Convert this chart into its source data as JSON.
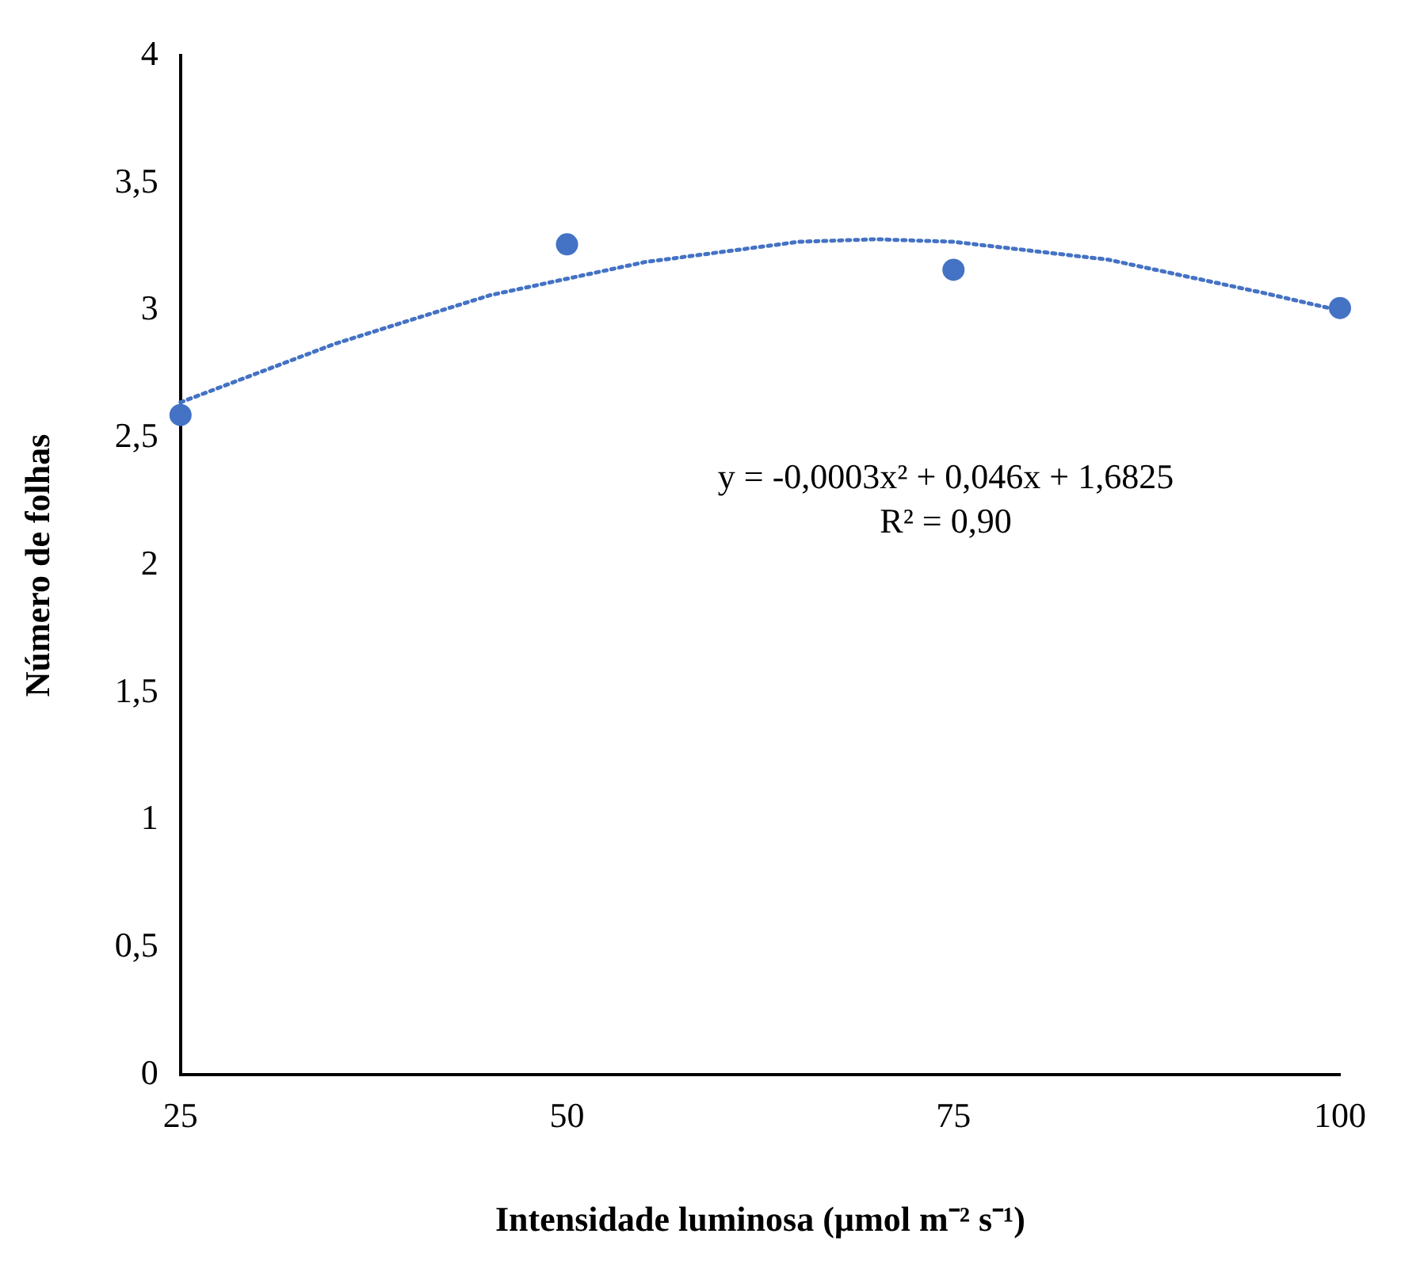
{
  "chart_data": {
    "type": "scatter",
    "xlabel": "Intensidade luminosa (µmol m⁻² s⁻¹)",
    "ylabel": "Número de folhas",
    "x": [
      25,
      50,
      75,
      100
    ],
    "xlim": [
      25,
      100
    ],
    "xticks": [
      25,
      50,
      75,
      100
    ],
    "ylim": [
      0,
      4
    ],
    "yticks": [
      0,
      {
        "value": 0.5,
        "label": "0,5"
      },
      1,
      {
        "value": 1.5,
        "label": "1,5"
      },
      2,
      {
        "value": 2.5,
        "label": "2,5"
      },
      3,
      {
        "value": 3.5,
        "label": "3,5"
      },
      4
    ],
    "series": [
      {
        "color": "#4472c4",
        "marker": "circle",
        "values": [
          2.59,
          3.26,
          3.16,
          3.01
        ]
      },
      {
        "type": "line",
        "color": "#4472c4",
        "line_style": "dotted",
        "marker": "none",
        "x": [
          25,
          35,
          45,
          55,
          65,
          70,
          75,
          85,
          95,
          100
        ],
        "values": [
          2.64,
          2.87,
          3.06,
          3.19,
          3.27,
          3.28,
          3.27,
          3.2,
          3.07,
          3.0
        ]
      }
    ],
    "annotations": [
      "y = -0,0003x² + 0,046x + 1,6825",
      "R² = 0,90"
    ],
    "grid": false,
    "legend": false
  }
}
